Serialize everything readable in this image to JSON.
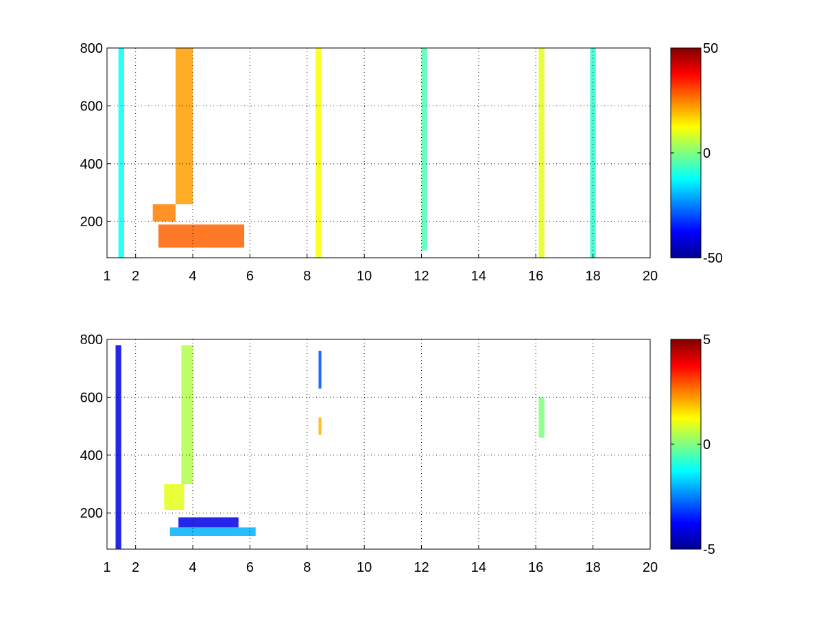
{
  "chart_data": [
    {
      "type": "heatmap",
      "title": "",
      "xlabel": "",
      "ylabel": "",
      "xlim": [
        1,
        20
      ],
      "ylim": [
        75,
        800
      ],
      "xticks": [
        1,
        2,
        4,
        6,
        8,
        10,
        12,
        14,
        16,
        18,
        20
      ],
      "yticks": [
        200,
        400,
        600,
        800
      ],
      "grid": true,
      "colormap": "jet",
      "colorbar": {
        "min": -50,
        "max": 50,
        "ticks": [
          -50,
          0,
          50
        ]
      },
      "features": [
        {
          "x": [
            1.4,
            1.6
          ],
          "y": [
            75,
            800
          ],
          "value": -12
        },
        {
          "x": [
            2.6,
            3.4
          ],
          "y": [
            200,
            260
          ],
          "value": 25
        },
        {
          "x": [
            3.4,
            4.0
          ],
          "y": [
            260,
            800
          ],
          "value": 22
        },
        {
          "x": [
            2.8,
            5.8
          ],
          "y": [
            110,
            190
          ],
          "value": 28
        },
        {
          "x": [
            8.3,
            8.5
          ],
          "y": [
            75,
            800
          ],
          "value": 12
        },
        {
          "x": [
            12.0,
            12.2
          ],
          "y": [
            100,
            800
          ],
          "value": -5
        },
        {
          "x": [
            16.1,
            16.3
          ],
          "y": [
            75,
            800
          ],
          "value": 10
        },
        {
          "x": [
            17.9,
            18.1
          ],
          "y": [
            75,
            800
          ],
          "value": -8
        }
      ]
    },
    {
      "type": "heatmap",
      "title": "",
      "xlabel": "",
      "ylabel": "",
      "xlim": [
        1,
        20
      ],
      "ylim": [
        75,
        800
      ],
      "xticks": [
        1,
        2,
        4,
        6,
        8,
        10,
        12,
        14,
        16,
        18,
        20
      ],
      "yticks": [
        200,
        400,
        600,
        800
      ],
      "grid": true,
      "colormap": "jet",
      "colorbar": {
        "min": -5,
        "max": 5,
        "ticks": [
          -5,
          0,
          5
        ]
      },
      "features": [
        {
          "x": [
            1.3,
            1.5
          ],
          "y": [
            75,
            780
          ],
          "value": -4
        },
        {
          "x": [
            3.0,
            3.7
          ],
          "y": [
            210,
            300
          ],
          "value": 1
        },
        {
          "x": [
            3.6,
            4.0
          ],
          "y": [
            300,
            780
          ],
          "value": 0.5
        },
        {
          "x": [
            3.5,
            5.6
          ],
          "y": [
            150,
            185
          ],
          "value": -4
        },
        {
          "x": [
            3.2,
            6.2
          ],
          "y": [
            120,
            150
          ],
          "value": -2
        },
        {
          "x": [
            8.4,
            8.5
          ],
          "y": [
            630,
            760
          ],
          "value": -3
        },
        {
          "x": [
            8.4,
            8.5
          ],
          "y": [
            470,
            530
          ],
          "value": 2
        },
        {
          "x": [
            16.1,
            16.3
          ],
          "y": [
            460,
            600
          ],
          "value": 0
        }
      ]
    }
  ]
}
